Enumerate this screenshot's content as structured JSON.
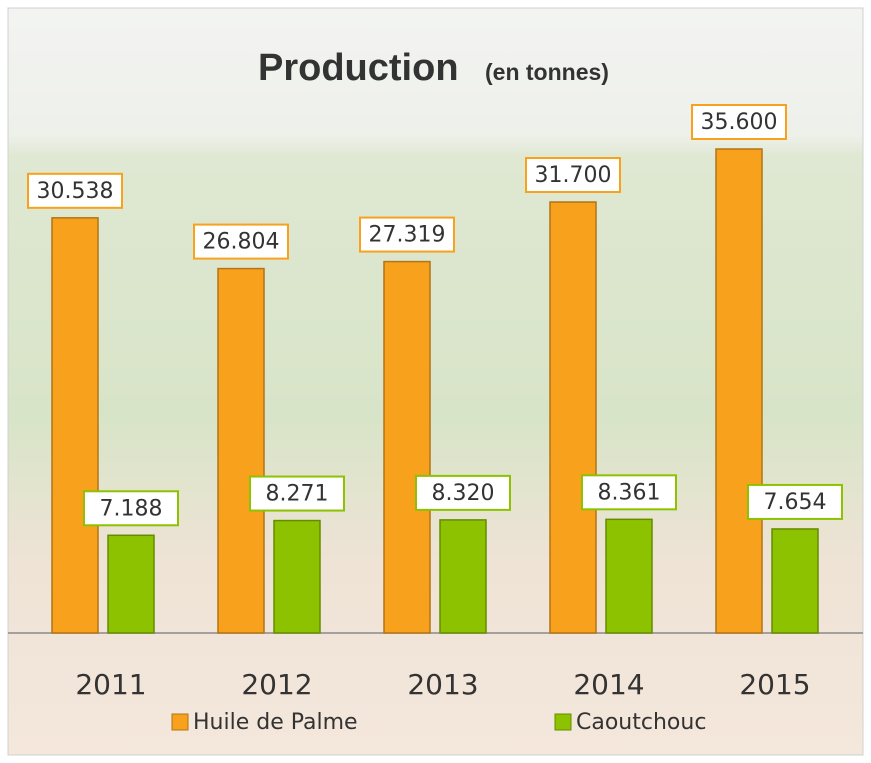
{
  "chart_data": {
    "type": "bar",
    "title": "Production",
    "subtitle": "(en tonnes)",
    "categories": [
      "2011",
      "2012",
      "2013",
      "2014",
      "2015"
    ],
    "series": [
      {
        "name": "Huile de Palme",
        "color": "#f7a11d",
        "values": [
          30538,
          26804,
          27319,
          31700,
          35600
        ],
        "value_labels": [
          "30.538",
          "26.804",
          "27.319",
          "31.700",
          "35.600"
        ]
      },
      {
        "name": "Caoutchouc",
        "color": "#8cc200",
        "values": [
          7188,
          8271,
          8320,
          8361,
          7654
        ],
        "value_labels": [
          "7.188",
          "8.271",
          "8.320",
          "8.361",
          "7.654"
        ]
      }
    ],
    "legend": "bottom"
  }
}
